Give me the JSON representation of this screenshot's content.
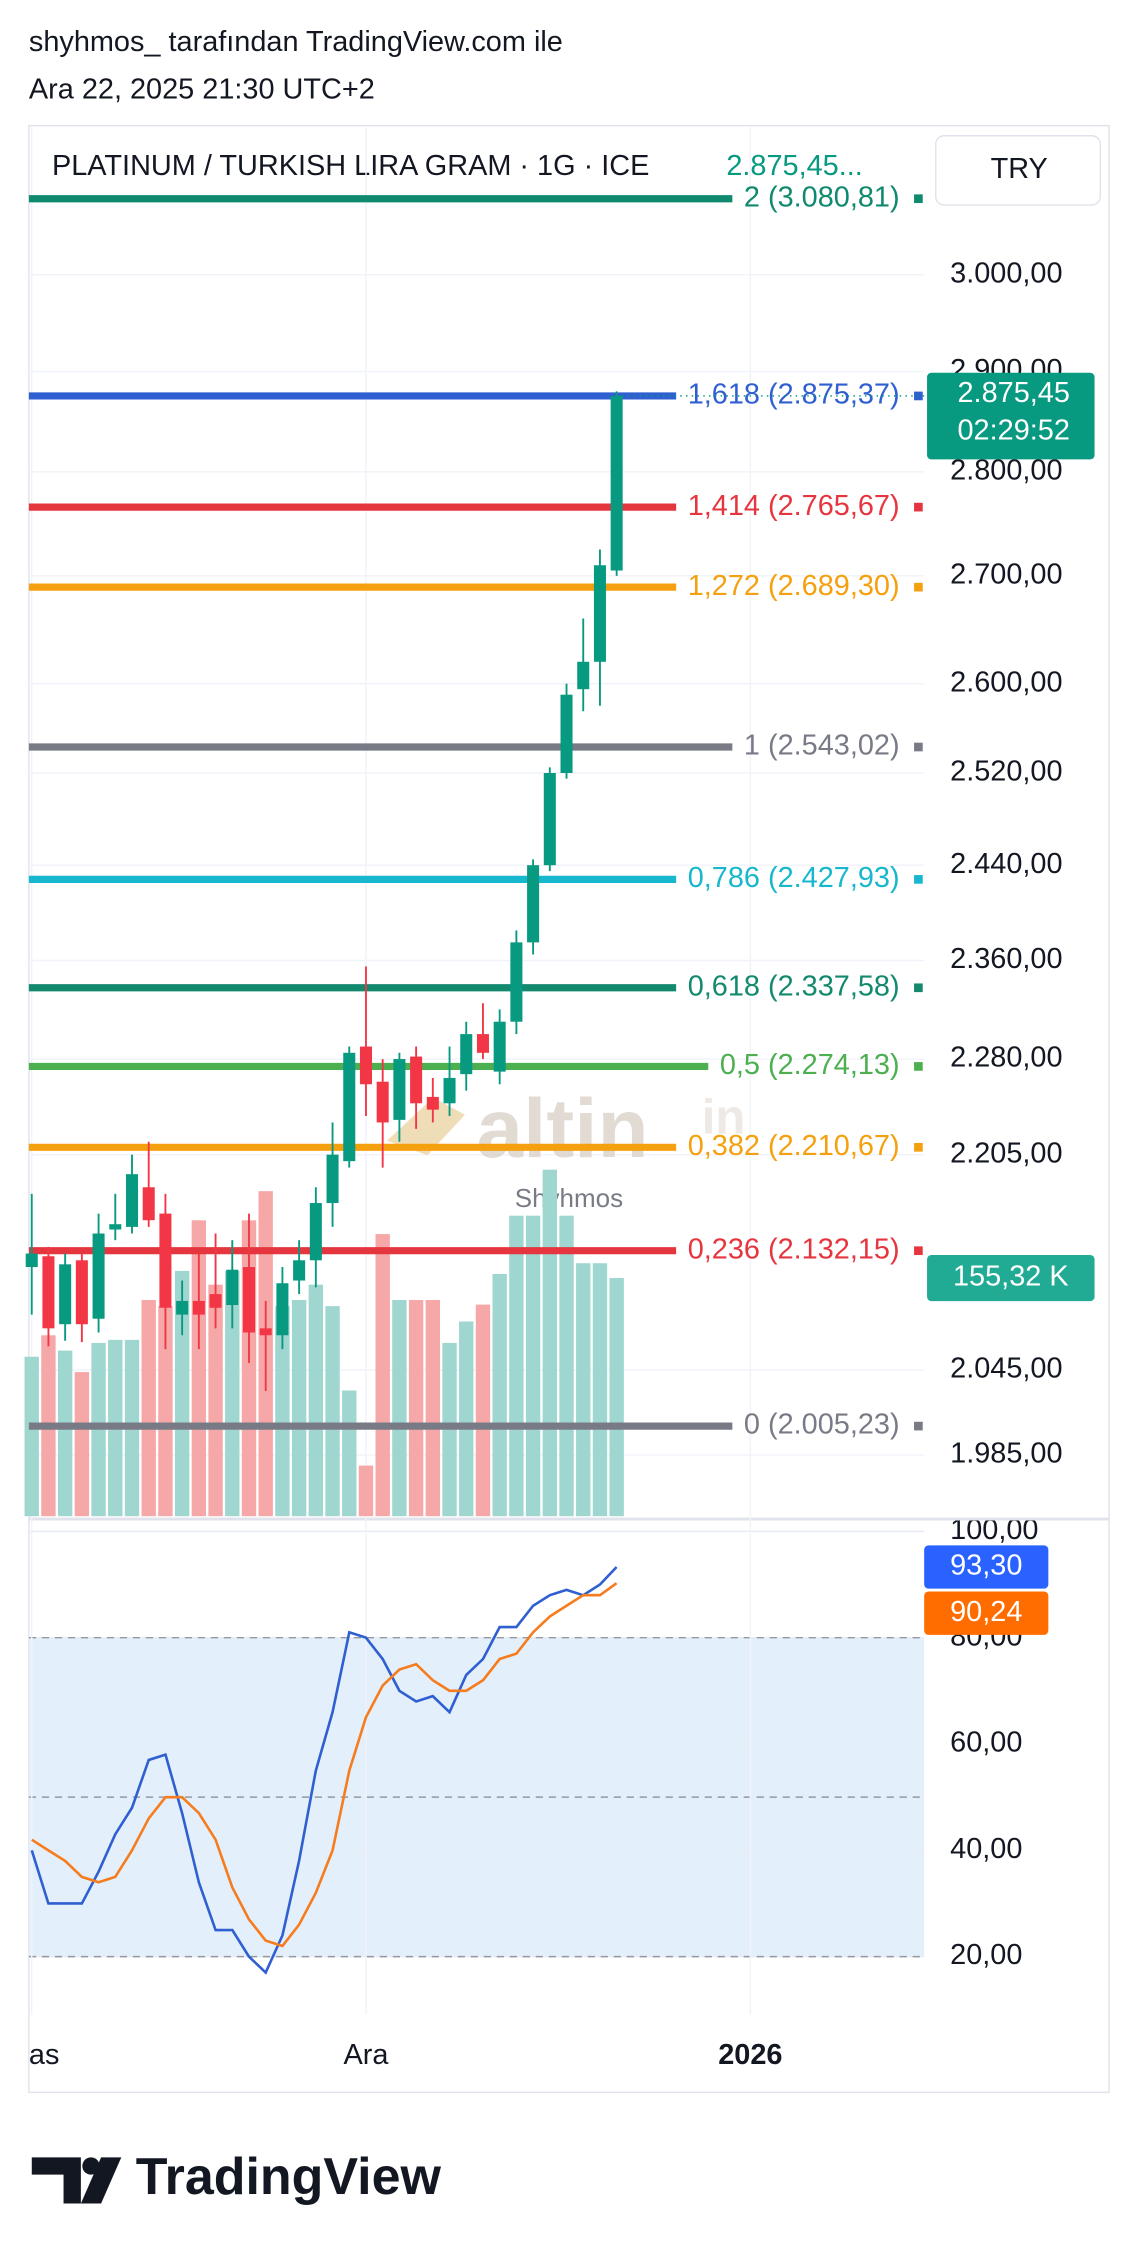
{
  "header": {
    "author_line": "shyhmos_ tarafından TradingView.com ile",
    "date_line": "Ara 22, 2025 21:30 UTC+2"
  },
  "footer": {
    "logo": "TradingView"
  },
  "chart_data": {
    "type": "candlestick",
    "title": "PLATINUM / TURKISH LIRA GRAM · 1G · ICE",
    "header_price": "2.875,45...",
    "currency": "TRY",
    "log_scale": true,
    "grid": true,
    "up_color": "#089981",
    "down_color": "#f23645",
    "ylim": [
      1943,
      3159
    ],
    "yticks": [
      {
        "value": 3000,
        "label": "3.000,00"
      },
      {
        "value": 2900,
        "label": "2.900,00"
      },
      {
        "value": 2800,
        "label": "2.800,00"
      },
      {
        "value": 2700,
        "label": "2.700,00"
      },
      {
        "value": 2600,
        "label": "2.600,00"
      },
      {
        "value": 2520,
        "label": "2.520,00"
      },
      {
        "value": 2440,
        "label": "2.440,00"
      },
      {
        "value": 2360,
        "label": "2.360,00"
      },
      {
        "value": 2280,
        "label": "2.280,00"
      },
      {
        "value": 2205,
        "label": "2.205,00"
      },
      {
        "value": 2045,
        "label": "2.045,00"
      },
      {
        "value": 1985,
        "label": "1.985,00"
      }
    ],
    "xlim": [
      -0.17,
      53.4
    ],
    "xticks": [
      {
        "value": 0,
        "label": "as"
      },
      {
        "value": 20,
        "label": "Ara"
      },
      {
        "value": 43,
        "label": "2026"
      }
    ],
    "open": [
      2120,
      2128,
      2078,
      2125,
      2082,
      2148,
      2150,
      2180,
      2160,
      2085,
      2095,
      2100,
      2092,
      2120,
      2075,
      2070,
      2110,
      2125,
      2168,
      2200,
      2290,
      2262,
      2232,
      2282,
      2250,
      2245,
      2268,
      2300,
      2270,
      2310,
      2375,
      2440,
      2520,
      2595,
      2620,
      2705
    ],
    "high": [
      2175,
      2135,
      2130,
      2130,
      2160,
      2175,
      2205,
      2215,
      2175,
      2110,
      2130,
      2145,
      2140,
      2160,
      2095,
      2120,
      2140,
      2180,
      2230,
      2290,
      2355,
      2280,
      2285,
      2290,
      2265,
      2290,
      2310,
      2325,
      2320,
      2385,
      2445,
      2525,
      2600,
      2660,
      2725,
      2880
    ],
    "low": [
      2085,
      2062,
      2066,
      2065,
      2072,
      2140,
      2145,
      2150,
      2060,
      2070,
      2060,
      2075,
      2075,
      2050,
      2030,
      2060,
      2100,
      2105,
      2150,
      2195,
      2235,
      2195,
      2215,
      2225,
      2230,
      2235,
      2255,
      2280,
      2260,
      2300,
      2365,
      2435,
      2515,
      2575,
      2580,
      2700
    ],
    "close": [
      2130,
      2075,
      2122,
      2078,
      2145,
      2152,
      2190,
      2155,
      2090,
      2095,
      2085,
      2090,
      2118,
      2072,
      2070,
      2108,
      2125,
      2168,
      2205,
      2285,
      2260,
      2230,
      2280,
      2245,
      2240,
      2265,
      2300,
      2285,
      2310,
      2375,
      2440,
      2520,
      2590,
      2620,
      2710,
      2875.45
    ],
    "last_price_label": "2.875,45",
    "countdown": "02:29:52",
    "volume": {
      "ylim": [
        0,
        906
      ],
      "up_color": "#9fd6cf",
      "down_color": "#f5a8a7",
      "values": [
        104,
        118,
        108,
        94,
        113,
        115,
        115,
        141,
        137,
        160,
        193,
        151,
        160,
        193,
        212,
        137,
        141,
        151,
        137,
        82,
        33,
        184,
        141,
        141,
        141,
        113,
        127,
        138,
        158,
        196,
        196,
        226,
        196,
        165,
        165,
        155.32
      ],
      "last_value_label": "155,32 K",
      "badge_color": "#22ab94"
    },
    "fib_levels": [
      {
        "price": 3080.81,
        "label": "2 (3.080,81)",
        "color": "#0f8a6e"
      },
      {
        "price": 2875.37,
        "label": "1,618 (2.875,37)",
        "color": "#2f5fd0"
      },
      {
        "price": 2765.67,
        "label": "1,414 (2.765,67)",
        "color": "#e5363f"
      },
      {
        "price": 2689.3,
        "label": "1,272 (2.689,30)",
        "color": "#f5a00f"
      },
      {
        "price": 2543.02,
        "label": "1 (2.543,02)",
        "color": "#787b86"
      },
      {
        "price": 2427.93,
        "label": "0,786 (2.427,93)",
        "color": "#17b8ce"
      },
      {
        "price": 2337.58,
        "label": "0,618 (2.337,58)",
        "color": "#13896e"
      },
      {
        "price": 2274.13,
        "label": "0,5 (2.274,13)",
        "color": "#4caf50"
      },
      {
        "price": 2210.67,
        "label": "0,382 (2.210,67)",
        "color": "#f5a00f"
      },
      {
        "price": 2132.15,
        "label": "0,236 (2.132,15)",
        "color": "#e5363f"
      },
      {
        "price": 2005.23,
        "label": "0 (2.005,23)",
        "color": "#787b86"
      }
    ],
    "watermark": {
      "brand": "altin",
      "suffix": "in",
      "author": "Shyhmos"
    },
    "oscillator": {
      "type": "line",
      "ylim": [
        9.13,
        102.04
      ],
      "yticks": [
        {
          "value": 100,
          "label": "100,00"
        },
        {
          "value": 80,
          "label": "80,00"
        },
        {
          "value": 60,
          "label": "60,00"
        },
        {
          "value": 40,
          "label": "40,00"
        },
        {
          "value": 20,
          "label": "20,00"
        }
      ],
      "bands": [
        20,
        50,
        80
      ],
      "band_color": "#e3f0fb",
      "series": [
        {
          "color": "#2f5fd0",
          "last_value_label": "93,30",
          "badge_color": "#2962ff",
          "values": [
            40,
            30,
            30,
            30,
            36,
            43,
            48,
            57,
            58,
            47,
            34,
            25,
            25,
            20,
            17,
            24,
            38,
            55,
            66,
            81,
            80,
            76,
            70,
            68,
            69,
            66,
            73,
            76,
            82,
            82,
            86,
            88,
            89,
            88,
            90,
            93.3
          ]
        },
        {
          "color": "#f57c1f",
          "last_value_label": "90,24",
          "badge_color": "#ff6d00",
          "values": [
            42,
            40,
            38,
            35,
            34,
            35,
            40,
            46,
            50,
            50,
            47,
            42,
            33,
            27,
            23,
            22,
            26,
            32,
            40,
            55,
            65,
            71,
            74,
            75,
            72,
            70,
            70,
            72,
            76,
            77,
            81,
            84,
            86,
            88,
            88,
            90.24
          ]
        }
      ]
    }
  }
}
